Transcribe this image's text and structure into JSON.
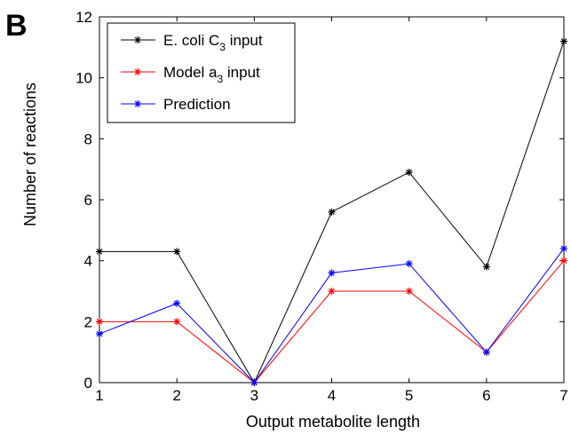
{
  "panel_label": "B",
  "chart_data": {
    "type": "line",
    "x": [
      1,
      2,
      3,
      4,
      5,
      6,
      7
    ],
    "series": [
      {
        "name": "E. coli C3 input",
        "label_main": "E. coli C",
        "label_sub": "3",
        "label_tail": " input",
        "color": "#000000",
        "values": [
          4.3,
          4.3,
          0,
          5.6,
          6.9,
          3.8,
          11.2
        ]
      },
      {
        "name": "Model a3 input",
        "label_main": "Model a",
        "label_sub": "3",
        "label_tail": " input",
        "color": "#ff0000",
        "values": [
          2.0,
          2.0,
          0,
          3.0,
          3.0,
          1.0,
          4.0
        ]
      },
      {
        "name": "Prediction",
        "label_main": "Prediction",
        "label_sub": "",
        "label_tail": "",
        "color": "#0000ff",
        "values": [
          1.6,
          2.6,
          0,
          3.6,
          3.9,
          1.0,
          4.4
        ]
      }
    ],
    "xlabel": "Output metabolite length",
    "ylabel": "Number of reactions",
    "xlim": [
      1,
      7
    ],
    "ylim": [
      0,
      12
    ],
    "xticks": [
      1,
      2,
      3,
      4,
      5,
      6,
      7
    ],
    "yticks": [
      0,
      2,
      4,
      6,
      8,
      10,
      12
    ],
    "grid": false,
    "legend_position": "top-left",
    "marker": "asterisk"
  }
}
